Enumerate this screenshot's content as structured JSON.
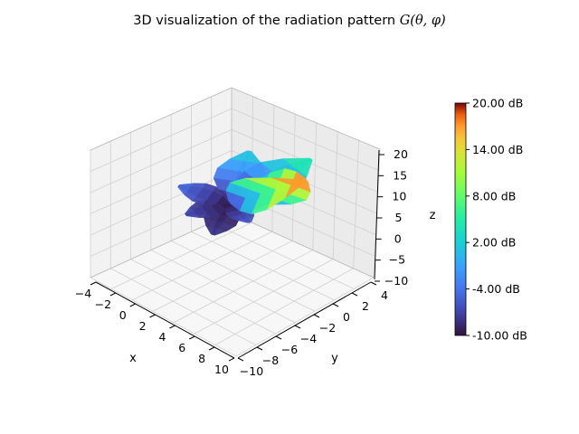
{
  "chart_data": {
    "type": "surface3d",
    "title_prefix": "3D visualization of the radiation pattern ",
    "title_math": "G(θ, φ)",
    "xlabel": "x",
    "ylabel": "y",
    "zlabel": "z",
    "xlim": [
      -4,
      10
    ],
    "ylim": [
      -10,
      4
    ],
    "zlim": [
      -10,
      20
    ],
    "x_ticks": [
      "−4",
      "−2",
      "0",
      "2",
      "4",
      "6",
      "8",
      "10"
    ],
    "y_ticks": [
      "−10",
      "−8",
      "−6",
      "−4",
      "−2",
      "0",
      "2",
      "4"
    ],
    "z_ticks": [
      "−10",
      "−5",
      "0",
      "5",
      "10",
      "15",
      "20"
    ],
    "grid": true,
    "colormap": "turbo",
    "colorbar": {
      "range": [
        -10,
        20
      ],
      "ticks": [
        "20.00 dB",
        "14.00 dB",
        "8.00 dB",
        "2.00 dB",
        "-4.00 dB",
        "-10.00 dB"
      ],
      "tick_values": [
        20,
        14,
        8,
        2,
        -4,
        -10
      ]
    },
    "lobes": [
      {
        "az": 30,
        "el": 55,
        "len": 9.5,
        "gain": 17
      },
      {
        "az": 80,
        "el": 20,
        "len": 7.5,
        "gain": 4
      },
      {
        "az": 120,
        "el": 15,
        "len": 6.0,
        "gain": 1
      },
      {
        "az": 200,
        "el": 10,
        "len": 4.0,
        "gain": -5
      },
      {
        "az": 250,
        "el": -5,
        "len": 3.5,
        "gain": -7
      },
      {
        "az": 290,
        "el": -40,
        "len": 4.0,
        "gain": -8
      },
      {
        "az": 340,
        "el": 5,
        "len": 3.0,
        "gain": -6
      },
      {
        "az": 60,
        "el": -30,
        "len": 3.0,
        "gain": -4
      }
    ]
  }
}
